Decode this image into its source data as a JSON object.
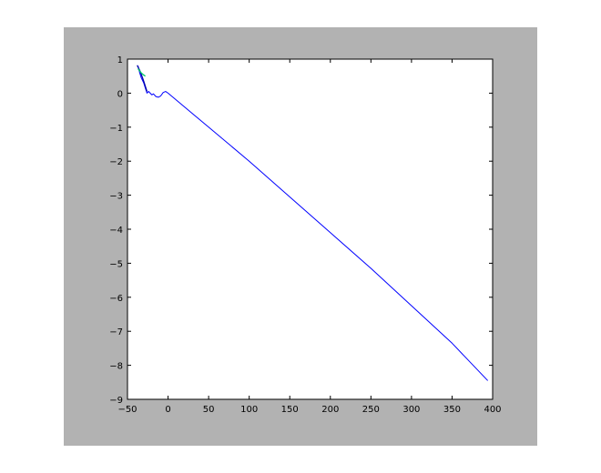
{
  "chart_data": {
    "type": "line",
    "title": "",
    "xlabel": "",
    "ylabel": "",
    "xlim": [
      -50,
      400
    ],
    "ylim": [
      -9,
      1
    ],
    "grid": false,
    "x_ticks": [
      -50,
      0,
      50,
      100,
      150,
      200,
      250,
      300,
      350,
      400
    ],
    "x_tick_labels": [
      "−50",
      "0",
      "50",
      "100",
      "150",
      "200",
      "250",
      "300",
      "350",
      "400"
    ],
    "y_ticks": [
      1,
      0,
      -1,
      -2,
      -3,
      -4,
      -5,
      -6,
      -7,
      -8,
      -9
    ],
    "y_tick_labels": [
      "1",
      "0",
      "−1",
      "−2",
      "−3",
      "−4",
      "−5",
      "−6",
      "−7",
      "−8",
      "−9"
    ],
    "series": [
      {
        "color": "#0000ff",
        "x": [
          -37,
          -35,
          -33,
          -30,
          -28,
          -26,
          -24,
          -22,
          -20,
          -18,
          -15,
          -12,
          -9,
          -6,
          -3,
          0,
          5,
          50,
          100,
          150,
          200,
          250,
          300,
          350,
          394
        ],
        "y": [
          0.8,
          0.6,
          0.45,
          0.3,
          0.15,
          0.0,
          0.05,
          0.0,
          -0.05,
          -0.02,
          -0.1,
          -0.12,
          -0.08,
          0.02,
          0.05,
          0.0,
          -0.1,
          -1.0,
          -2.0,
          -3.05,
          -4.1,
          -5.15,
          -6.25,
          -7.35,
          -8.45
        ]
      },
      {
        "color": "#0000aa",
        "x": [
          -38,
          -34,
          -30,
          -26
        ],
        "y": [
          0.82,
          0.62,
          0.35,
          0.05
        ]
      },
      {
        "color": "#00cc66",
        "x": [
          -37,
          -34,
          -31,
          -28
        ],
        "y": [
          0.72,
          0.62,
          0.55,
          0.5
        ]
      }
    ]
  }
}
